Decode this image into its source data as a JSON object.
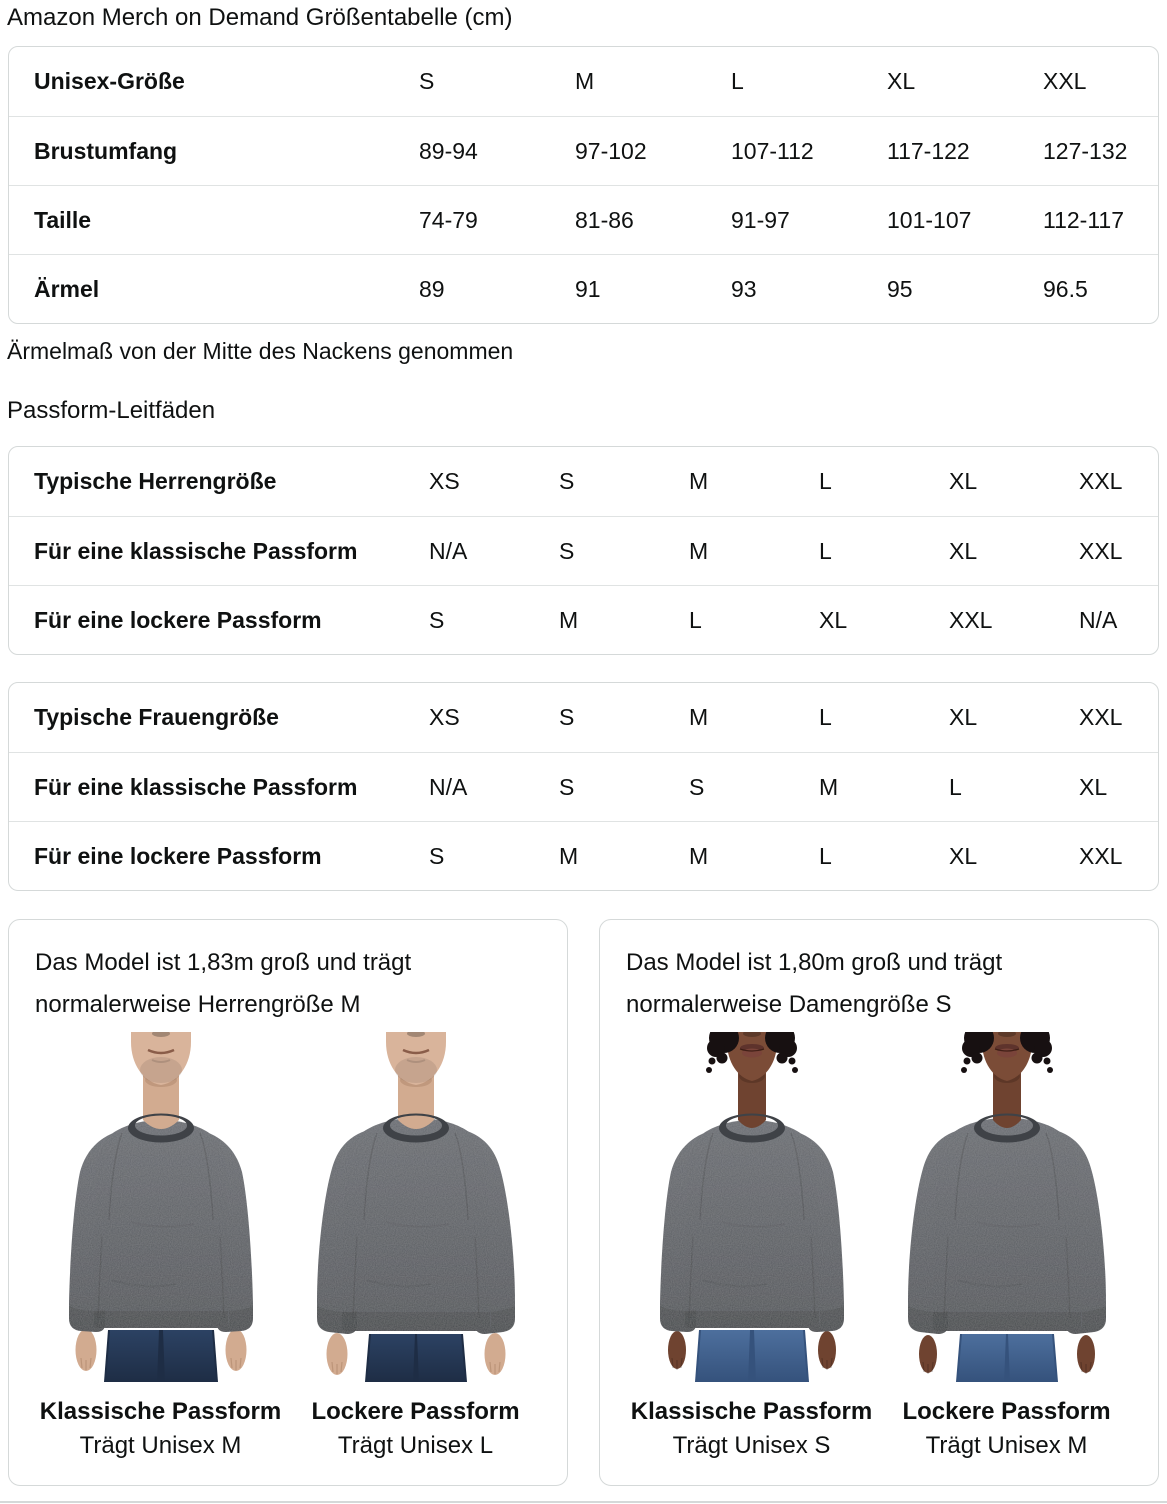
{
  "page": {
    "title": "Amazon Merch on Demand Größentabelle (cm)",
    "note": "Ärmelmaß von der Mitte des Nackens genommen",
    "section_heading": "Passform-Leitfäden"
  },
  "size_table": {
    "rows": [
      {
        "label": "Unisex-Größe",
        "values": [
          "S",
          "M",
          "L",
          "XL",
          "XXL"
        ]
      },
      {
        "label": "Brustumfang",
        "values": [
          "89-94",
          "97-102",
          "107-112",
          "117-122",
          "127-132"
        ]
      },
      {
        "label": "Taille",
        "values": [
          "74-79",
          "81-86",
          "91-97",
          "101-107",
          "112-117"
        ]
      },
      {
        "label": "Ärmel",
        "values": [
          "89",
          "91",
          "93",
          "95",
          "96.5"
        ]
      }
    ]
  },
  "fit_tables": [
    {
      "rows": [
        {
          "label": "Typische Herrengröße",
          "values": [
            "XS",
            "S",
            "M",
            "L",
            "XL",
            "XXL"
          ]
        },
        {
          "label": "Für eine klassische Passform",
          "values": [
            "N/A",
            "S",
            "M",
            "L",
            "XL",
            "XXL"
          ]
        },
        {
          "label": "Für eine lockere Passform",
          "values": [
            "S",
            "M",
            "L",
            "XL",
            "XXL",
            "N/A"
          ]
        }
      ]
    },
    {
      "rows": [
        {
          "label": "Typische Frauengröße",
          "values": [
            "XS",
            "S",
            "M",
            "L",
            "XL",
            "XXL"
          ]
        },
        {
          "label": "Für eine klassische Passform",
          "values": [
            "N/A",
            "S",
            "S",
            "M",
            "L",
            "XL"
          ]
        },
        {
          "label": "Für eine lockere Passform",
          "values": [
            "S",
            "M",
            "M",
            "L",
            "XL",
            "XXL"
          ]
        }
      ]
    }
  ],
  "fit_cards": [
    {
      "description": "Das Model ist 1,83m groß und trägt normalerweise Herrengröße M",
      "figures": [
        {
          "fit_label": "Klassische Passform",
          "wears_label": "Trägt Unisex M",
          "model": "male",
          "fit": "classic"
        },
        {
          "fit_label": "Lockere Passform",
          "wears_label": "Trägt Unisex L",
          "model": "male",
          "fit": "loose"
        }
      ]
    },
    {
      "description": "Das Model ist 1,80m groß und trägt normalerweise Damengröße S",
      "figures": [
        {
          "fit_label": "Klassische Passform",
          "wears_label": "Trägt Unisex S",
          "model": "female",
          "fit": "classic"
        },
        {
          "fit_label": "Lockere Passform",
          "wears_label": "Trägt Unisex M",
          "model": "female",
          "fit": "loose"
        }
      ]
    }
  ],
  "colors": {
    "text": "#0f1111",
    "card_border": "#d5d9d9",
    "row_divider": "#e0e3e3",
    "sweatshirt": "#4e5156",
    "sweatshirt_light": "#66696f",
    "jeans_men": "#2c4263",
    "jeans_women": "#4d6f9d",
    "skin_men": "#d2ab90",
    "skin_women": "#6f4330",
    "hair_women": "#171011"
  }
}
